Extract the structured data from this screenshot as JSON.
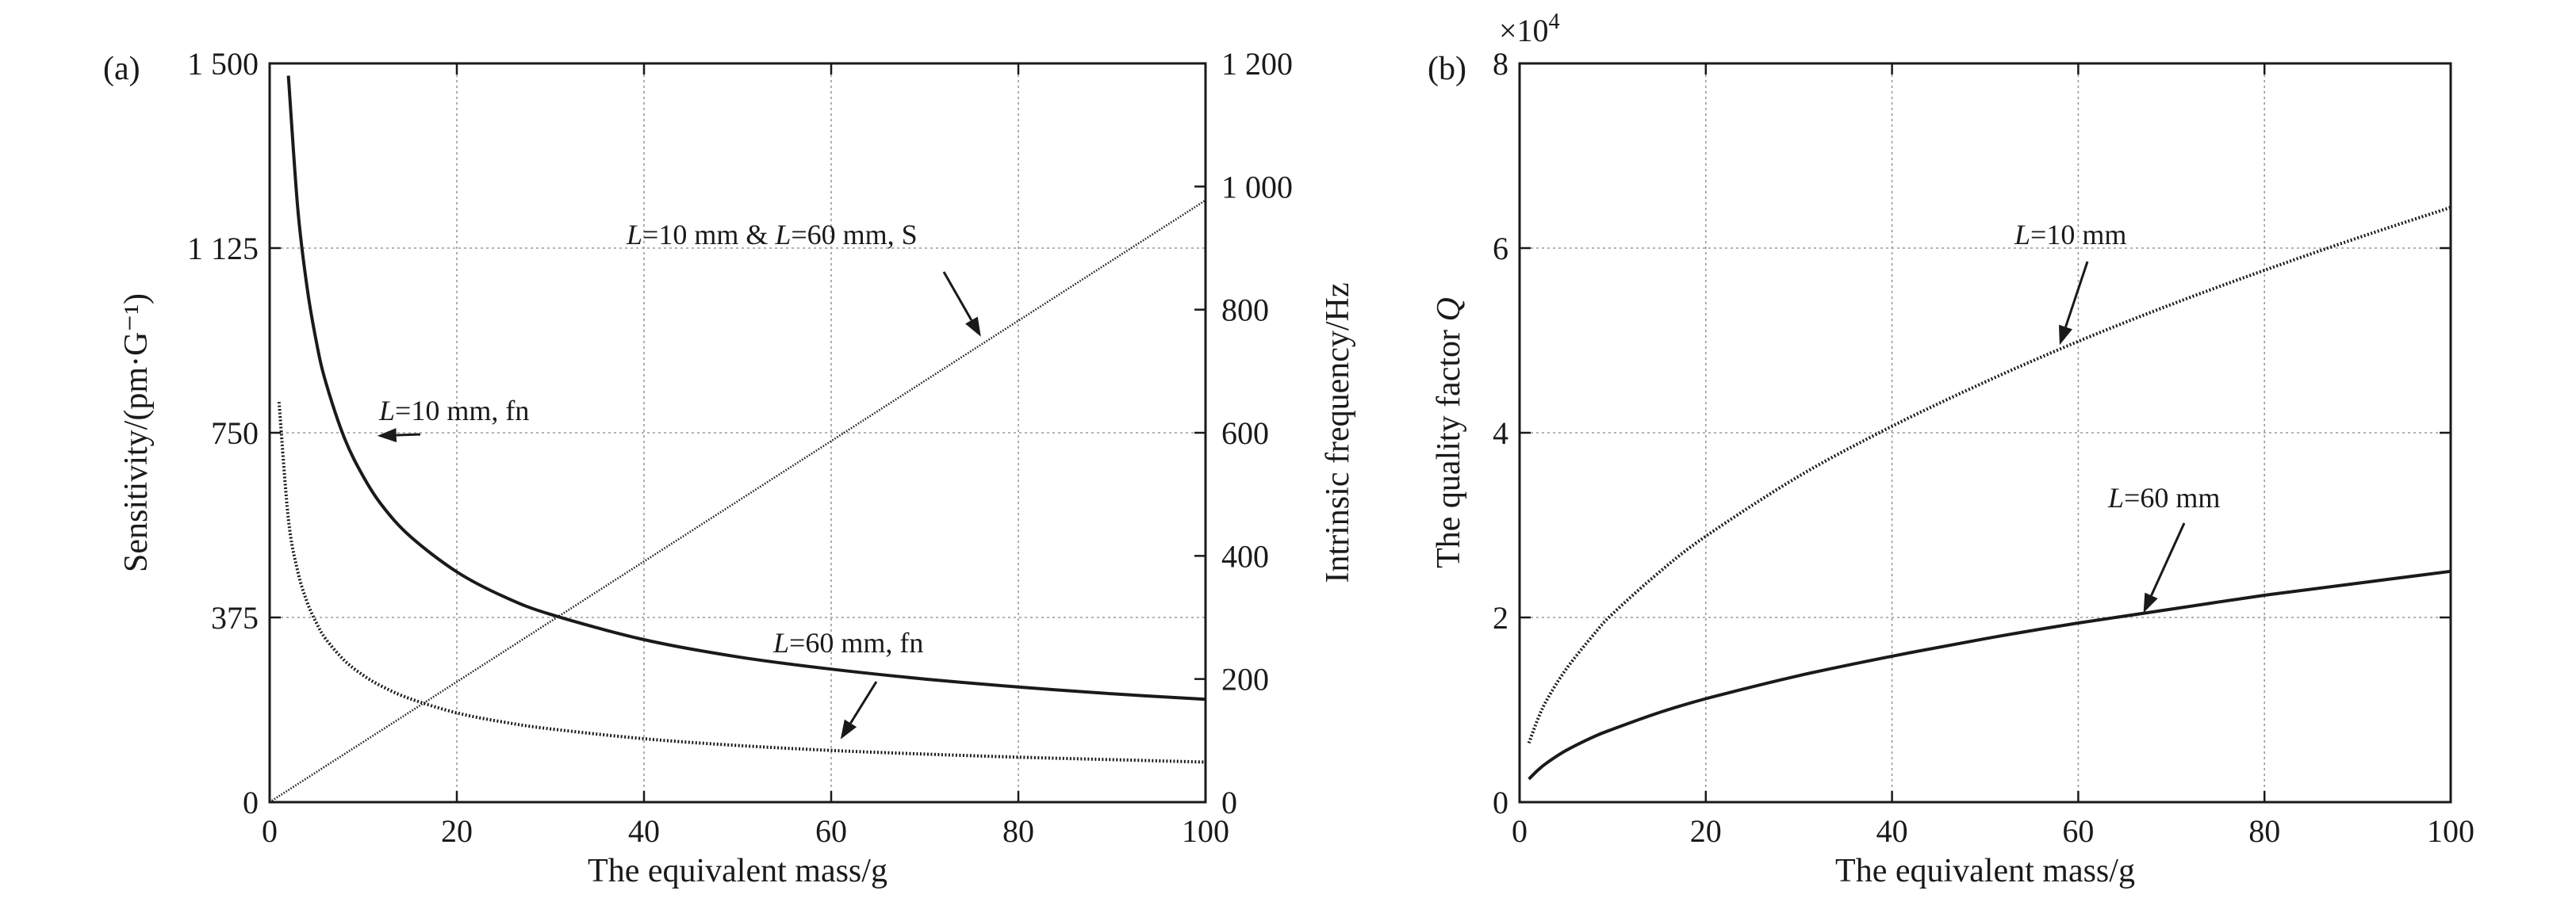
{
  "chart_data": [
    {
      "panel": "(a)",
      "type": "line",
      "xlabel": "The equivalent mass/g",
      "ylabel": "Sensitivity/(pm·G⁻¹)",
      "y2label": "Intrinsic frequency/Hz",
      "xlim": [
        0,
        100
      ],
      "ylim": [
        0,
        1500
      ],
      "y2lim": [
        0,
        1200
      ],
      "xticks": [
        "0",
        "20",
        "40",
        "60",
        "80",
        "100"
      ],
      "yticks": [
        "0",
        "375",
        "750",
        "1 125",
        "1 500"
      ],
      "y2ticks": [
        "0",
        "200",
        "400",
        "600",
        "800",
        "1 000",
        "1 200"
      ],
      "grid": true,
      "series": [
        {
          "axis": "right",
          "style": "solid",
          "x": [
            2,
            3,
            4,
            5,
            6,
            8,
            10,
            12,
            15,
            20,
            25,
            30,
            40,
            50,
            60,
            70,
            80,
            90,
            100
          ],
          "values": [
            1180,
            965,
            836,
            747,
            682,
            591,
            529,
            482,
            432,
            374,
            334,
            305,
            264,
            236,
            216,
            200,
            187,
            176,
            167
          ]
        },
        {
          "axis": "right",
          "style": "dotted",
          "x": [
            1,
            2,
            3,
            4,
            5,
            6,
            8,
            10,
            12,
            15,
            20,
            25,
            30,
            40,
            50,
            60,
            70,
            80,
            90,
            100
          ],
          "values": [
            650,
            460,
            375,
            325,
            291,
            265,
            230,
            206,
            188,
            168,
            145,
            130,
            119,
            103,
            92,
            84,
            78,
            73,
            69,
            65
          ]
        },
        {
          "axis": "left",
          "style": "fine-dotted",
          "x": [
            0,
            100
          ],
          "values": [
            0,
            1222
          ]
        }
      ],
      "annotations": [
        {
          "italic": "L",
          "text": "=10 mm, fn",
          "data_x": 11.5,
          "data_y": 595
        },
        {
          "italic": "L",
          "text": "=60 mm, fn",
          "data_x": 61,
          "data_y": 102
        },
        {
          "italic": "L",
          "text": "=10 mm & ",
          "italic2": "L",
          "text2": "=60 mm, S",
          "data_x": 76,
          "data_y": 945
        }
      ]
    },
    {
      "panel": "(b)",
      "type": "line",
      "xlabel": "The equivalent mass/g",
      "ylabel": "The quality factor ",
      "ylabel_italic": "Q",
      "multiplier": "×10",
      "multiplier_exp": "4",
      "xlim": [
        0,
        100
      ],
      "ylim": [
        0,
        8
      ],
      "xticks": [
        "0",
        "20",
        "40",
        "60",
        "80",
        "100"
      ],
      "yticks": [
        "0",
        "2",
        "4",
        "6",
        "8"
      ],
      "grid": true,
      "series": [
        {
          "style": "dotted",
          "x": [
            1,
            2,
            3,
            5,
            8,
            10,
            15,
            20,
            30,
            40,
            50,
            60,
            70,
            80,
            90,
            100
          ],
          "values": [
            0.64,
            0.91,
            1.12,
            1.44,
            1.82,
            2.04,
            2.49,
            2.88,
            3.53,
            4.07,
            4.55,
            4.99,
            5.39,
            5.76,
            6.11,
            6.44
          ]
        },
        {
          "style": "solid",
          "x": [
            1,
            2,
            3,
            5,
            8,
            10,
            15,
            20,
            30,
            40,
            50,
            60,
            70,
            80,
            90,
            100
          ],
          "values": [
            0.25,
            0.35,
            0.43,
            0.56,
            0.71,
            0.79,
            0.97,
            1.12,
            1.37,
            1.58,
            1.77,
            1.94,
            2.09,
            2.24,
            2.37,
            2.5
          ]
        }
      ],
      "annotations": [
        {
          "italic": "L",
          "text": "=10 mm",
          "data_x": 58,
          "data_y": 4.95
        },
        {
          "italic": "L",
          "text": "=60 mm",
          "data_x": 67,
          "data_y": 2.05
        }
      ]
    }
  ]
}
